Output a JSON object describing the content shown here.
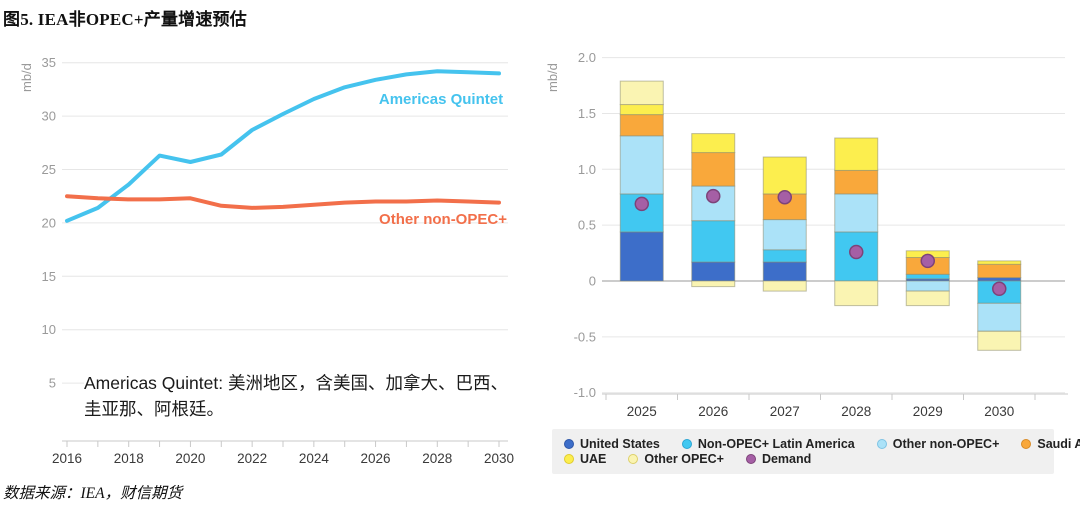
{
  "header": {
    "title": "图5. IEA非OPEC+产量增速预估"
  },
  "footer": {
    "source": "数据来源：IEA，财信期货"
  },
  "annotation": {
    "text": "Americas Quintet: 美洲地区，含美国、加拿大、巴西、圭亚那、阿根廷。"
  },
  "colors": {
    "us": "#3d6ec9",
    "us_border": "#2f57a8",
    "latam": "#41c8f1",
    "latam_border": "#2ba6d4",
    "other_nonopec": "#abe2f8",
    "other_nonopec_border": "#7ec3e4",
    "saudi": "#f9a83b",
    "saudi_border": "#d98b26",
    "uae": "#fcee4e",
    "uae_border": "#e0cc2e",
    "other_opec": "#faf4b2",
    "other_opec_border": "#ddd06a",
    "demand": "#a55fa5",
    "demand_border": "#7d4379",
    "line_americas": "#45c3ee",
    "line_other": "#f26f4a",
    "grid": "#e6e6e6",
    "axis": "#c9c9c9",
    "zero_line": "#999999",
    "tick_label": "#9a9a9a",
    "x_label": "#3a3a3a",
    "segment_stroke": "#8a8a70"
  },
  "legend": {
    "items": [
      {
        "key": "us",
        "label": "United States",
        "row": 0
      },
      {
        "key": "latam",
        "label": "Non-OPEC+ Latin America",
        "row": 0
      },
      {
        "key": "other_nonopec",
        "label": "Other non-OPEC+",
        "row": 0
      },
      {
        "key": "saudi",
        "label": "Saudi Arabia",
        "row": 0
      },
      {
        "key": "uae",
        "label": "UAE",
        "row": 1
      },
      {
        "key": "other_opec",
        "label": "Other OPEC+",
        "row": 1
      },
      {
        "key": "demand",
        "label": "Demand",
        "row": 1
      }
    ]
  },
  "chart_data": [
    {
      "type": "line",
      "ylabel": "mb/d",
      "x": [
        2016,
        2017,
        2018,
        2019,
        2020,
        2021,
        2022,
        2023,
        2024,
        2025,
        2026,
        2027,
        2028,
        2029,
        2030
      ],
      "xticks": [
        2016,
        2018,
        2020,
        2022,
        2024,
        2026,
        2028,
        2030
      ],
      "yticks": [
        35,
        30,
        25,
        20,
        15,
        10,
        5
      ],
      "ylim": [
        3.5,
        36
      ],
      "grid": true,
      "series": [
        {
          "name": "Americas Quintet",
          "color_key": "line_americas",
          "values": [
            20.2,
            21.4,
            23.6,
            26.3,
            25.7,
            26.4,
            28.7,
            30.2,
            31.6,
            32.7,
            33.4,
            33.9,
            34.2,
            34.1,
            34.0
          ]
        },
        {
          "name": "Other non-OPEC+",
          "color_key": "line_other",
          "values": [
            22.5,
            22.3,
            22.2,
            22.2,
            22.3,
            21.6,
            21.4,
            21.5,
            21.7,
            21.9,
            22.0,
            22.0,
            22.1,
            22.0,
            21.9
          ]
        }
      ]
    },
    {
      "type": "bar",
      "stacked": true,
      "ylabel": "mb/d",
      "categories": [
        "2025",
        "2026",
        "2027",
        "2028",
        "2029",
        "2030"
      ],
      "yticks": [
        2.0,
        1.5,
        1.0,
        0.5,
        0,
        -0.5,
        -1.0
      ],
      "ytick_labels": [
        "2.0",
        "1.5",
        "1.0",
        "0.5",
        "0",
        "-0.5",
        "-1.0"
      ],
      "ylim": [
        -1.0,
        2.0
      ],
      "grid": true,
      "series": [
        {
          "name": "United States",
          "color_key": "us",
          "values": [
            0.44,
            0.17,
            0.17,
            0.0,
            0.02,
            0.03
          ]
        },
        {
          "name": "Non-OPEC+ Latin America",
          "color_key": "latam",
          "values": [
            0.34,
            0.37,
            0.11,
            0.44,
            0.04,
            -0.2
          ]
        },
        {
          "name": "Other non-OPEC+",
          "color_key": "other_nonopec",
          "values": [
            0.52,
            0.31,
            0.27,
            0.34,
            -0.09,
            -0.25
          ]
        },
        {
          "name": "Saudi Arabia",
          "color_key": "saudi",
          "values": [
            0.19,
            0.3,
            0.23,
            0.21,
            0.15,
            0.12
          ]
        },
        {
          "name": "UAE",
          "color_key": "uae",
          "values": [
            0.09,
            0.17,
            0.33,
            0.29,
            0.06,
            0.03
          ]
        },
        {
          "name": "Other OPEC+",
          "color_key": "other_opec",
          "values": [
            0.21,
            -0.05,
            -0.09,
            -0.22,
            -0.13,
            -0.17
          ]
        }
      ],
      "points_series": {
        "name": "Demand",
        "color_key": "demand",
        "values": [
          0.69,
          0.76,
          0.75,
          0.26,
          0.18,
          -0.07
        ]
      }
    }
  ]
}
